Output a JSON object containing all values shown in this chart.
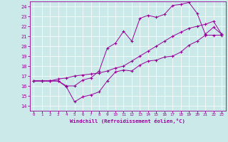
{
  "xlabel": "Windchill (Refroidissement éolien,°C)",
  "xlim": [
    -0.5,
    23.5
  ],
  "ylim": [
    13.5,
    24.5
  ],
  "xticks": [
    0,
    1,
    2,
    3,
    4,
    5,
    6,
    7,
    8,
    9,
    10,
    11,
    12,
    13,
    14,
    15,
    16,
    17,
    18,
    19,
    20,
    21,
    22,
    23
  ],
  "yticks": [
    14,
    15,
    16,
    17,
    18,
    19,
    20,
    21,
    22,
    23,
    24
  ],
  "bg_color": "#cbe9e9",
  "line_color": "#990099",
  "line1_x": [
    0,
    1,
    2,
    3,
    4,
    5,
    6,
    7,
    8,
    9,
    10,
    11,
    12,
    13,
    14,
    15,
    16,
    17,
    18,
    19,
    20,
    21,
    22,
    23
  ],
  "line1_y": [
    16.5,
    16.5,
    16.5,
    16.5,
    15.9,
    14.4,
    14.9,
    15.1,
    15.4,
    16.5,
    17.4,
    17.6,
    17.5,
    18.1,
    18.5,
    18.6,
    18.9,
    19.0,
    19.4,
    20.1,
    20.5,
    21.1,
    21.1,
    21.1
  ],
  "line2_x": [
    0,
    1,
    2,
    3,
    4,
    5,
    6,
    7,
    8,
    9,
    10,
    11,
    12,
    13,
    14,
    15,
    16,
    17,
    18,
    19,
    20,
    21,
    22,
    23
  ],
  "line2_y": [
    16.5,
    16.5,
    16.5,
    16.5,
    16.0,
    16.0,
    16.6,
    16.8,
    17.5,
    19.8,
    20.3,
    21.5,
    20.5,
    22.8,
    23.1,
    22.9,
    23.2,
    24.1,
    24.2,
    24.4,
    23.3,
    21.2,
    21.9,
    21.2
  ],
  "line3_x": [
    0,
    1,
    2,
    3,
    4,
    5,
    6,
    7,
    8,
    9,
    10,
    11,
    12,
    13,
    14,
    15,
    16,
    17,
    18,
    19,
    20,
    21,
    22,
    23
  ],
  "line3_y": [
    16.5,
    16.5,
    16.5,
    16.7,
    16.8,
    17.0,
    17.1,
    17.2,
    17.3,
    17.5,
    17.8,
    18.0,
    18.5,
    19.0,
    19.5,
    20.0,
    20.5,
    21.0,
    21.4,
    21.8,
    22.0,
    22.2,
    22.5,
    21.2
  ]
}
